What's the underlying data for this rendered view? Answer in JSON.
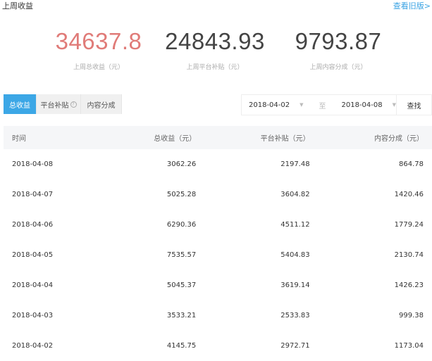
{
  "header": {
    "title": "上周收益",
    "old_link": "查看旧版>"
  },
  "stats": [
    {
      "value": "34637.8",
      "label": "上周总收益（元）",
      "color": "#e07b78"
    },
    {
      "value": "24843.93",
      "label": "上周平台补贴（元）"
    },
    {
      "value": "9793.87",
      "label": "上周内容分成（元）"
    }
  ],
  "tabs": [
    {
      "label": "总收益",
      "active": true
    },
    {
      "label": "平台补贴",
      "help_icon": "question-icon"
    },
    {
      "label": "内容分成"
    }
  ],
  "filter": {
    "start": "2018-04-02",
    "to": "至",
    "end": "2018-04-08",
    "search": "查找"
  },
  "table": {
    "columns": [
      "时间",
      "总收益（元）",
      "平台补贴（元）",
      "内容分成（元）"
    ],
    "rows": [
      [
        "2018-04-08",
        "3062.26",
        "2197.48",
        "864.78"
      ],
      [
        "2018-04-07",
        "5025.28",
        "3604.82",
        "1420.46"
      ],
      [
        "2018-04-06",
        "6290.36",
        "4511.12",
        "1779.24"
      ],
      [
        "2018-04-05",
        "7535.57",
        "5404.83",
        "2130.74"
      ],
      [
        "2018-04-04",
        "5045.37",
        "3619.14",
        "1426.23"
      ],
      [
        "2018-04-03",
        "3533.21",
        "2533.83",
        "999.38"
      ],
      [
        "2018-04-02",
        "4145.75",
        "2972.71",
        "1173.04"
      ]
    ]
  },
  "colors": {
    "accent": "#3ca7e6",
    "total": "#e07b78"
  }
}
